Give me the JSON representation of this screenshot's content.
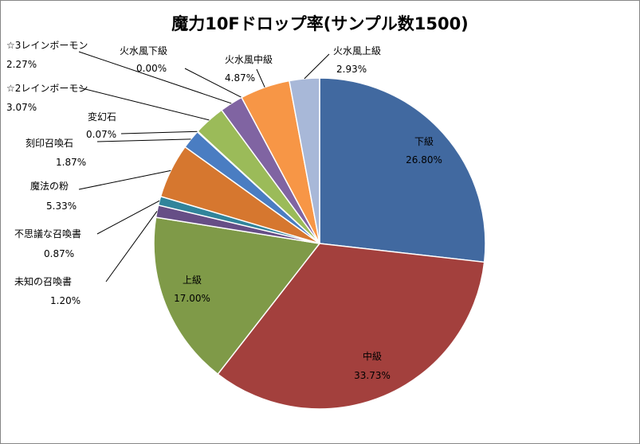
{
  "chart_data": {
    "type": "pie",
    "title": "魔力10Fドロップ率(サンプル数1500)",
    "slices": [
      {
        "label": "下級",
        "value": 26.8,
        "pct": "26.80%",
        "color": "#4169A0"
      },
      {
        "label": "中級",
        "value": 33.73,
        "pct": "33.73%",
        "color": "#A3403D"
      },
      {
        "label": "上級",
        "value": 17.0,
        "pct": "17.00%",
        "color": "#7F9A48"
      },
      {
        "label": "未知の召喚書",
        "value": 1.2,
        "pct": "1.20%",
        "color": "#664E86"
      },
      {
        "label": "不思議な召喚書",
        "value": 0.87,
        "pct": "0.87%",
        "color": "#31849B"
      },
      {
        "label": "魔法の粉",
        "value": 5.33,
        "pct": "5.33%",
        "color": "#D6772F"
      },
      {
        "label": "刻印召喚石",
        "value": 1.87,
        "pct": "1.87%",
        "color": "#4A7DC2"
      },
      {
        "label": "変幻石",
        "value": 0.07,
        "pct": "0.07%",
        "color": "#C0504D"
      },
      {
        "label": "☆2レインボーモン",
        "value": 3.07,
        "pct": "3.07%",
        "color": "#9BBB59"
      },
      {
        "label": "☆3レインボーモン",
        "value": 2.27,
        "pct": "2.27%",
        "color": "#8064A2"
      },
      {
        "label": "火水風下級",
        "value": 0.0,
        "pct": "0.00%",
        "color": "#4BACC6"
      },
      {
        "label": "火水風中級",
        "value": 4.87,
        "pct": "4.87%",
        "color": "#F79646"
      },
      {
        "label": "火水風上級",
        "value": 2.93,
        "pct": "2.93%",
        "color": "#A8B8D8"
      }
    ]
  }
}
